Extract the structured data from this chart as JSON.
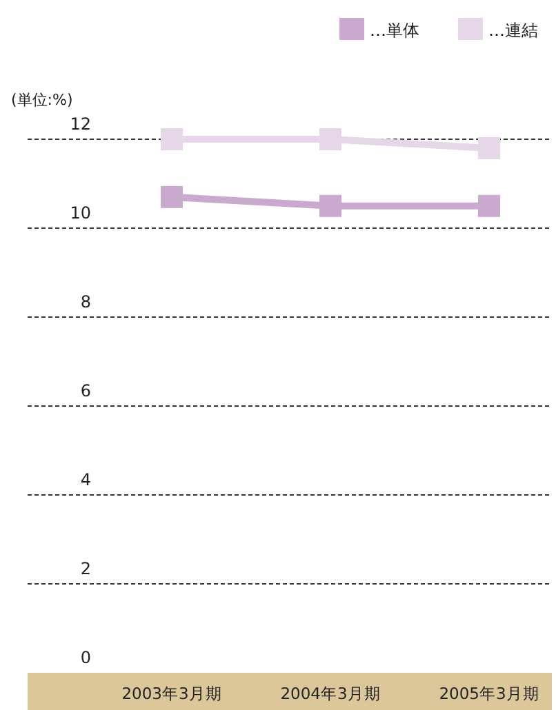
{
  "chart_data": {
    "type": "line",
    "ylabel": "(単位:%)",
    "categories": [
      "2003年3月期",
      "2004年3月期",
      "2005年3月期"
    ],
    "series": [
      {
        "name": "…単体",
        "color": "#c9a9cd",
        "values": [
          10.7,
          10.5,
          10.5
        ]
      },
      {
        "name": "…連結",
        "color": "#e5d7e8",
        "values": [
          12.0,
          12.0,
          11.8
        ]
      }
    ],
    "ylim": [
      0,
      12
    ],
    "yticks": [
      0,
      2,
      4,
      6,
      8,
      10,
      12
    ],
    "grid": "y",
    "legend": "top right",
    "marker": "square",
    "line_style": "solid"
  }
}
